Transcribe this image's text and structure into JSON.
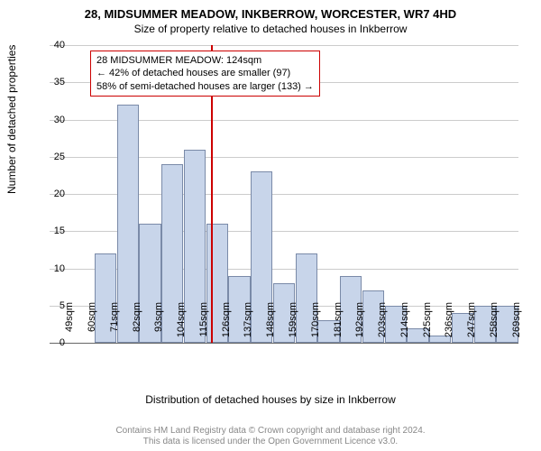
{
  "title": "28, MIDSUMMER MEADOW, INKBERROW, WORCESTER, WR7 4HD",
  "subtitle": "Size of property relative to detached houses in Inkberrow",
  "ylabel": "Number of detached properties",
  "xlabel": "Distribution of detached houses by size in Inkberrow",
  "footer1": "Contains HM Land Registry data © Crown copyright and database right 2024.",
  "footer2": "This data is licensed under the Open Government Licence v3.0.",
  "annotation": {
    "line1": "28 MIDSUMMER MEADOW: 124sqm",
    "line2": "← 42% of detached houses are smaller (97)",
    "line3": "58% of semi-detached houses are larger (133) →"
  },
  "chart": {
    "type": "histogram",
    "ylim": [
      0,
      40
    ],
    "ytick_step": 5,
    "xticks": [
      "49sqm",
      "60sqm",
      "71sqm",
      "82sqm",
      "93sqm",
      "104sqm",
      "115sqm",
      "126sqm",
      "137sqm",
      "148sqm",
      "159sqm",
      "170sqm",
      "181sqm",
      "192sqm",
      "203sqm",
      "214sqm",
      "225sqm",
      "236sqm",
      "247sqm",
      "258sqm",
      "269sqm"
    ],
    "bar_color": "#c8d5ea",
    "bar_border": "#7a8aa8",
    "grid_color": "#cccccc",
    "background_color": "#ffffff",
    "marker_color": "#cc0000",
    "marker_position": 0.345,
    "values": [
      0,
      0,
      12,
      32,
      16,
      24,
      26,
      16,
      9,
      23,
      8,
      12,
      3,
      9,
      7,
      5,
      2,
      1,
      4,
      5,
      5
    ]
  }
}
